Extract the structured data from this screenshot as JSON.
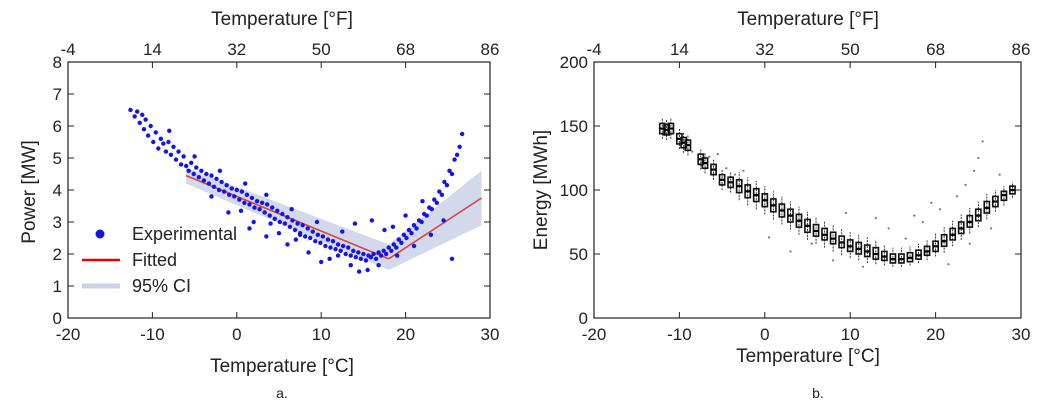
{
  "chart_data": [
    {
      "id": "a",
      "type": "scatter",
      "caption": "a.",
      "xlabel": "Temperature [°C]",
      "x2label": "Temperature [°F]",
      "ylabel": "Power [MW]",
      "xlim": [
        -20,
        30
      ],
      "ylim": [
        0,
        8
      ],
      "x_ticks": [
        "-20",
        "-10",
        "0",
        "10",
        "20",
        "30"
      ],
      "y_ticks": [
        "0",
        "1",
        "2",
        "3",
        "4",
        "5",
        "6",
        "7",
        "8"
      ],
      "x2_ticks": [
        "-4",
        "14",
        "32",
        "50",
        "68",
        "86"
      ],
      "legend": {
        "placement": "lower-left",
        "entries": [
          {
            "label": "Experimental",
            "color": "#1414e6",
            "marker": "dot"
          },
          {
            "label": "Fitted",
            "color": "#e00000",
            "marker": "line"
          },
          {
            "label": "95% CI",
            "color": "#c9d2e8",
            "marker": "band"
          }
        ]
      },
      "scatter_color": "#1414e6",
      "points": [
        [
          -12.6,
          6.5
        ],
        [
          -12.1,
          6.3
        ],
        [
          -11.8,
          6.45
        ],
        [
          -11.5,
          6.1
        ],
        [
          -11.2,
          6.35
        ],
        [
          -11.0,
          5.9
        ],
        [
          -10.8,
          6.2
        ],
        [
          -10.5,
          5.7
        ],
        [
          -10.2,
          6.0
        ],
        [
          -9.9,
          5.5
        ],
        [
          -9.6,
          5.8
        ],
        [
          -9.3,
          5.3
        ],
        [
          -9.0,
          5.6
        ],
        [
          -8.7,
          5.45
        ],
        [
          -8.4,
          5.2
        ],
        [
          -8.1,
          5.5
        ],
        [
          -7.8,
          5.1
        ],
        [
          -7.5,
          5.35
        ],
        [
          -7.2,
          4.95
        ],
        [
          -6.9,
          5.2
        ],
        [
          -6.6,
          4.8
        ],
        [
          -6.3,
          5.05
        ],
        [
          -6.0,
          4.75
        ],
        [
          -5.7,
          4.6
        ],
        [
          -5.4,
          4.85
        ],
        [
          -5.1,
          4.5
        ],
        [
          -4.8,
          4.7
        ],
        [
          -4.5,
          4.4
        ],
        [
          -4.2,
          4.6
        ],
        [
          -3.9,
          4.3
        ],
        [
          -3.6,
          4.5
        ],
        [
          -3.3,
          4.2
        ],
        [
          -3.0,
          4.45
        ],
        [
          -2.7,
          4.1
        ],
        [
          -2.4,
          4.35
        ],
        [
          -2.1,
          4.0
        ],
        [
          -1.8,
          4.25
        ],
        [
          -1.5,
          3.95
        ],
        [
          -1.2,
          4.15
        ],
        [
          -0.9,
          3.85
        ],
        [
          -0.6,
          4.05
        ],
        [
          -0.3,
          3.8
        ],
        [
          0.0,
          4.0
        ],
        [
          0.3,
          3.7
        ],
        [
          0.6,
          3.95
        ],
        [
          0.9,
          3.6
        ],
        [
          1.2,
          3.85
        ],
        [
          1.5,
          3.55
        ],
        [
          1.8,
          3.75
        ],
        [
          2.1,
          3.45
        ],
        [
          2.4,
          3.65
        ],
        [
          2.7,
          3.4
        ],
        [
          3.0,
          3.6
        ],
        [
          3.3,
          3.3
        ],
        [
          3.6,
          3.55
        ],
        [
          3.9,
          3.2
        ],
        [
          4.2,
          3.45
        ],
        [
          4.5,
          3.1
        ],
        [
          4.8,
          3.35
        ],
        [
          5.1,
          3.0
        ],
        [
          5.4,
          3.25
        ],
        [
          5.7,
          2.95
        ],
        [
          6.0,
          3.15
        ],
        [
          6.3,
          2.85
        ],
        [
          6.6,
          3.05
        ],
        [
          6.9,
          2.75
        ],
        [
          7.2,
          2.95
        ],
        [
          7.5,
          2.65
        ],
        [
          7.8,
          2.9
        ],
        [
          8.1,
          2.55
        ],
        [
          8.4,
          2.8
        ],
        [
          8.7,
          2.5
        ],
        [
          9.0,
          2.7
        ],
        [
          9.3,
          2.4
        ],
        [
          9.6,
          2.6
        ],
        [
          9.9,
          2.35
        ],
        [
          10.2,
          2.55
        ],
        [
          10.5,
          2.25
        ],
        [
          10.8,
          2.45
        ],
        [
          11.1,
          2.2
        ],
        [
          11.4,
          2.4
        ],
        [
          11.7,
          2.15
        ],
        [
          12.0,
          2.3
        ],
        [
          12.3,
          2.1
        ],
        [
          12.6,
          2.25
        ],
        [
          12.9,
          2.0
        ],
        [
          13.2,
          2.2
        ],
        [
          13.5,
          1.95
        ],
        [
          13.8,
          2.1
        ],
        [
          14.1,
          1.9
        ],
        [
          14.4,
          2.05
        ],
        [
          14.7,
          1.85
        ],
        [
          15.0,
          2.0
        ],
        [
          15.3,
          1.8
        ],
        [
          15.6,
          1.95
        ],
        [
          15.9,
          1.9
        ],
        [
          16.2,
          2.0
        ],
        [
          16.5,
          1.85
        ],
        [
          16.8,
          2.05
        ],
        [
          17.1,
          1.95
        ],
        [
          17.4,
          2.1
        ],
        [
          17.7,
          2.0
        ],
        [
          18.0,
          2.2
        ],
        [
          18.3,
          2.1
        ],
        [
          18.6,
          2.3
        ],
        [
          18.9,
          2.2
        ],
        [
          19.2,
          2.45
        ],
        [
          19.5,
          2.35
        ],
        [
          19.8,
          2.6
        ],
        [
          20.1,
          2.5
        ],
        [
          20.4,
          2.75
        ],
        [
          20.7,
          2.65
        ],
        [
          21.0,
          2.9
        ],
        [
          21.3,
          2.8
        ],
        [
          21.6,
          3.05
        ],
        [
          21.9,
          3.0
        ],
        [
          22.2,
          3.25
        ],
        [
          22.5,
          3.2
        ],
        [
          22.8,
          3.45
        ],
        [
          23.1,
          3.4
        ],
        [
          23.4,
          3.7
        ],
        [
          23.7,
          3.6
        ],
        [
          24.0,
          3.95
        ],
        [
          24.3,
          3.85
        ],
        [
          24.6,
          4.25
        ],
        [
          24.9,
          4.15
        ],
        [
          25.2,
          4.6
        ],
        [
          25.5,
          4.5
        ],
        [
          25.8,
          4.95
        ],
        [
          26.1,
          5.1
        ],
        [
          26.4,
          5.35
        ],
        [
          26.7,
          5.75
        ],
        [
          -8.0,
          5.85
        ],
        [
          -5.0,
          5.05
        ],
        [
          -2.0,
          4.6
        ],
        [
          1.0,
          4.2
        ],
        [
          3.5,
          3.85
        ],
        [
          6.5,
          3.4
        ],
        [
          9.5,
          3.0
        ],
        [
          12.5,
          2.7
        ],
        [
          1.5,
          2.8
        ],
        [
          3.5,
          2.55
        ],
        [
          6.0,
          2.3
        ],
        [
          8.5,
          2.05
        ],
        [
          11.0,
          1.85
        ],
        [
          13.5,
          1.65
        ],
        [
          15.5,
          1.5
        ],
        [
          14.5,
          1.45
        ],
        [
          10.0,
          1.75
        ],
        [
          16.8,
          1.65
        ],
        [
          -1.0,
          3.3
        ],
        [
          2.0,
          3.0
        ],
        [
          5.0,
          2.65
        ],
        [
          7.0,
          2.45
        ],
        [
          12.0,
          1.95
        ],
        [
          14.0,
          2.95
        ],
        [
          16.0,
          3.05
        ],
        [
          17.5,
          2.75
        ],
        [
          19.0,
          1.95
        ],
        [
          21.0,
          2.25
        ],
        [
          23.0,
          2.6
        ],
        [
          25.5,
          1.85
        ],
        [
          24.5,
          3.05
        ],
        [
          22.0,
          3.65
        ],
        [
          20.0,
          3.2
        ],
        [
          18.5,
          2.85
        ],
        [
          -3.0,
          3.8
        ],
        [
          0.5,
          3.35
        ],
        [
          4.0,
          2.95
        ],
        [
          7.5,
          2.6
        ]
      ],
      "fit_segments": [
        {
          "x": [
            -6,
            18
          ],
          "y": [
            4.45,
            1.85
          ]
        },
        {
          "x": [
            18,
            29
          ],
          "y": [
            1.85,
            3.75
          ]
        }
      ],
      "ci_band": {
        "x": [
          -6,
          18,
          29
        ],
        "upper": [
          4.7,
          2.3,
          4.6
        ],
        "lower": [
          4.2,
          1.5,
          2.9
        ]
      }
    },
    {
      "id": "b",
      "type": "boxplot",
      "caption": "b.",
      "xlabel": "Temperature [°C]",
      "x2label": "Temperature [°F]",
      "ylabel": "Energy [MWh]",
      "xlim": [
        -20,
        30
      ],
      "ylim": [
        0,
        200
      ],
      "x_ticks": [
        "-20",
        "-10",
        "0",
        "10",
        "20",
        "30"
      ],
      "y_ticks": [
        "0",
        "50",
        "100",
        "150",
        "200"
      ],
      "x2_ticks": [
        "-4",
        "14",
        "32",
        "50",
        "68",
        "86"
      ],
      "boxes": [
        {
          "x": -12.0,
          "med": 148,
          "q1": 144,
          "q3": 152,
          "lo": 140,
          "hi": 156
        },
        {
          "x": -11.5,
          "med": 147,
          "q1": 143,
          "q3": 151,
          "lo": 139,
          "hi": 155
        },
        {
          "x": -11.0,
          "med": 148,
          "q1": 144,
          "q3": 152,
          "lo": 140,
          "hi": 156
        },
        {
          "x": -10.0,
          "med": 140,
          "q1": 136,
          "q3": 144,
          "lo": 132,
          "hi": 148
        },
        {
          "x": -9.5,
          "med": 137,
          "q1": 133,
          "q3": 141,
          "lo": 129,
          "hi": 145
        },
        {
          "x": -9.0,
          "med": 135,
          "q1": 131,
          "q3": 139,
          "lo": 127,
          "hi": 143
        },
        {
          "x": -7.5,
          "med": 124,
          "q1": 120,
          "q3": 128,
          "lo": 116,
          "hi": 132
        },
        {
          "x": -7.0,
          "med": 121,
          "q1": 117,
          "q3": 125,
          "lo": 113,
          "hi": 129
        },
        {
          "x": -6.0,
          "med": 116,
          "q1": 112,
          "q3": 120,
          "lo": 108,
          "hi": 124
        },
        {
          "x": -5.0,
          "med": 108,
          "q1": 104,
          "q3": 112,
          "lo": 100,
          "hi": 116
        },
        {
          "x": -4.0,
          "med": 106,
          "q1": 102,
          "q3": 110,
          "lo": 98,
          "hi": 114
        },
        {
          "x": -3.0,
          "med": 103,
          "q1": 98,
          "q3": 108,
          "lo": 92,
          "hi": 114
        },
        {
          "x": -2.0,
          "med": 99,
          "q1": 94,
          "q3": 104,
          "lo": 88,
          "hi": 110
        },
        {
          "x": -1.0,
          "med": 96,
          "q1": 91,
          "q3": 101,
          "lo": 85,
          "hi": 107
        },
        {
          "x": 0.0,
          "med": 92,
          "q1": 87,
          "q3": 97,
          "lo": 81,
          "hi": 103
        },
        {
          "x": 1.0,
          "med": 88,
          "q1": 83,
          "q3": 93,
          "lo": 77,
          "hi": 99
        },
        {
          "x": 2.0,
          "med": 84,
          "q1": 79,
          "q3": 89,
          "lo": 73,
          "hi": 95
        },
        {
          "x": 3.0,
          "med": 80,
          "q1": 75,
          "q3": 85,
          "lo": 69,
          "hi": 91
        },
        {
          "x": 4.0,
          "med": 76,
          "q1": 71,
          "q3": 81,
          "lo": 65,
          "hi": 87
        },
        {
          "x": 5.0,
          "med": 72,
          "q1": 67,
          "q3": 77,
          "lo": 61,
          "hi": 83
        },
        {
          "x": 6.0,
          "med": 68,
          "q1": 64,
          "q3": 73,
          "lo": 58,
          "hi": 79
        },
        {
          "x": 7.0,
          "med": 65,
          "q1": 61,
          "q3": 70,
          "lo": 55,
          "hi": 76
        },
        {
          "x": 8.0,
          "med": 62,
          "q1": 58,
          "q3": 67,
          "lo": 52,
          "hi": 73
        },
        {
          "x": 9.0,
          "med": 59,
          "q1": 55,
          "q3": 64,
          "lo": 49,
          "hi": 70
        },
        {
          "x": 10.0,
          "med": 56,
          "q1": 52,
          "q3": 61,
          "lo": 47,
          "hi": 67
        },
        {
          "x": 11.0,
          "med": 54,
          "q1": 50,
          "q3": 59,
          "lo": 45,
          "hi": 65
        },
        {
          "x": 12.0,
          "med": 52,
          "q1": 48,
          "q3": 57,
          "lo": 43,
          "hi": 63
        },
        {
          "x": 13.0,
          "med": 50,
          "q1": 46,
          "q3": 55,
          "lo": 42,
          "hi": 61
        },
        {
          "x": 14.0,
          "med": 48,
          "q1": 45,
          "q3": 52,
          "lo": 41,
          "hi": 57
        },
        {
          "x": 15.0,
          "med": 46,
          "q1": 43,
          "q3": 50,
          "lo": 40,
          "hi": 55
        },
        {
          "x": 16.0,
          "med": 46,
          "q1": 43,
          "q3": 50,
          "lo": 40,
          "hi": 55
        },
        {
          "x": 17.0,
          "med": 47,
          "q1": 44,
          "q3": 51,
          "lo": 41,
          "hi": 56
        },
        {
          "x": 18.0,
          "med": 49,
          "q1": 46,
          "q3": 53,
          "lo": 43,
          "hi": 58
        },
        {
          "x": 19.0,
          "med": 52,
          "q1": 49,
          "q3": 56,
          "lo": 45,
          "hi": 61
        },
        {
          "x": 20.0,
          "med": 56,
          "q1": 52,
          "q3": 60,
          "lo": 48,
          "hi": 66
        },
        {
          "x": 21.0,
          "med": 60,
          "q1": 56,
          "q3": 65,
          "lo": 51,
          "hi": 71
        },
        {
          "x": 22.0,
          "med": 65,
          "q1": 61,
          "q3": 70,
          "lo": 56,
          "hi": 76
        },
        {
          "x": 23.0,
          "med": 70,
          "q1": 66,
          "q3": 75,
          "lo": 61,
          "hi": 81
        },
        {
          "x": 24.0,
          "med": 75,
          "q1": 71,
          "q3": 80,
          "lo": 66,
          "hi": 86
        },
        {
          "x": 25.0,
          "med": 80,
          "q1": 76,
          "q3": 85,
          "lo": 71,
          "hi": 91
        },
        {
          "x": 26.0,
          "med": 86,
          "q1": 82,
          "q3": 91,
          "lo": 77,
          "hi": 97
        },
        {
          "x": 27.0,
          "med": 91,
          "q1": 87,
          "q3": 95,
          "lo": 83,
          "hi": 100
        },
        {
          "x": 28.0,
          "med": 96,
          "q1": 92,
          "q3": 99,
          "lo": 88,
          "hi": 103
        },
        {
          "x": 29.0,
          "med": 100,
          "q1": 97,
          "q3": 103,
          "lo": 94,
          "hi": 106
        }
      ],
      "outliers": [
        [
          -8.5,
          130
        ],
        [
          -6.5,
          126
        ],
        [
          -4.5,
          117
        ],
        [
          -3.5,
          112
        ],
        [
          -2.5,
          115
        ],
        [
          0.5,
          63
        ],
        [
          3.0,
          52
        ],
        [
          5.5,
          58
        ],
        [
          8.0,
          45
        ],
        [
          11.5,
          40
        ],
        [
          14.5,
          70
        ],
        [
          16.5,
          62
        ],
        [
          18.5,
          75
        ],
        [
          20.5,
          85
        ],
        [
          22.5,
          95
        ],
        [
          23.5,
          104
        ],
        [
          24.5,
          115
        ],
        [
          25.0,
          125
        ],
        [
          25.5,
          138
        ],
        [
          26.5,
          70
        ],
        [
          21.5,
          42
        ],
        [
          19.5,
          90
        ],
        [
          17.5,
          80
        ],
        [
          13.0,
          78
        ],
        [
          9.5,
          82
        ],
        [
          -5.5,
          128
        ],
        [
          27.5,
          112
        ],
        [
          24.0,
          58
        ]
      ]
    }
  ]
}
